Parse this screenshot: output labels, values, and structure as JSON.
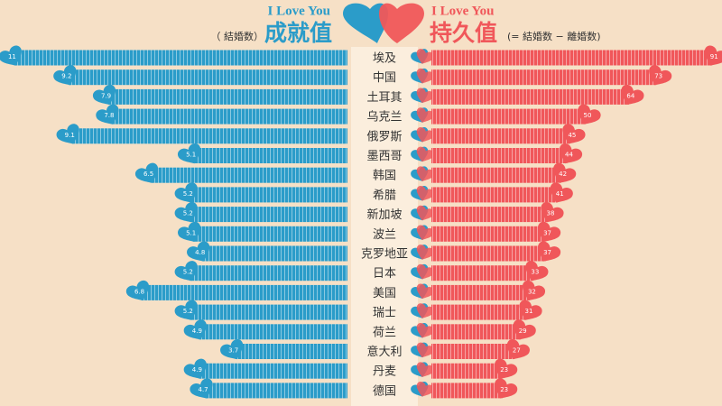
{
  "chart_data": {
    "type": "butterfly",
    "left_header": {
      "tagline": "I Love You",
      "note": "（ 結婚数）"
    },
    "right_header": {
      "tagline": "I Love You",
      "note": "(= 結婚数 − 離婚数)"
    },
    "categories": [
      "埃及",
      "中国",
      "土耳其",
      "乌克兰",
      "俄罗斯",
      "墨西哥",
      "韩国",
      "希腊",
      "新加坡",
      "波兰",
      "克罗地亚",
      "日本",
      "美国",
      "瑞士",
      "荷兰",
      "意大利",
      "丹麦",
      "德国"
    ],
    "series": [
      {
        "name": "成就值",
        "color": "#2b9cc9",
        "side": "left",
        "values": [
          11.0,
          9.2,
          7.9,
          7.8,
          9.1,
          5.1,
          6.5,
          5.2,
          5.2,
          5.1,
          4.8,
          5.2,
          6.8,
          5.2,
          4.9,
          3.7,
          4.9,
          4.7
        ]
      },
      {
        "name": "持久值",
        "color": "#f0575a",
        "side": "right",
        "values": [
          91,
          73,
          64,
          50,
          45,
          44,
          42,
          41,
          38,
          37,
          37,
          33,
          32,
          31,
          29,
          27,
          23,
          23
        ]
      }
    ]
  }
}
